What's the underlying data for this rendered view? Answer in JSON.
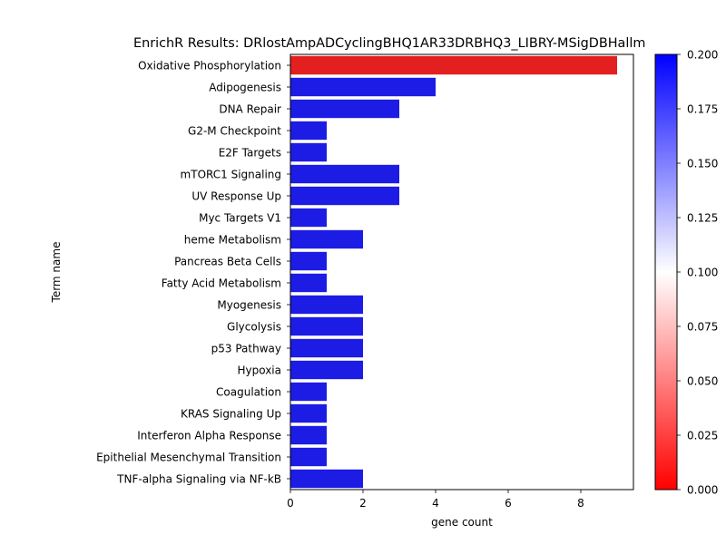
{
  "chart_data": {
    "type": "bar",
    "orientation": "horizontal",
    "title": "EnrichR Results: DRlostAmpADCyclingBHQ1AR33DRBHQ3_LIBRY-MSigDBHallm",
    "xlabel": "gene count",
    "ylabel": "Term name",
    "xlim": [
      0,
      9.45
    ],
    "xticks": [
      0,
      2,
      4,
      6,
      8
    ],
    "grid": false,
    "categories": [
      "Oxidative Phosphorylation",
      "Adipogenesis",
      "DNA Repair",
      "G2-M Checkpoint",
      "E2F Targets",
      "mTORC1 Signaling",
      "UV Response Up",
      "Myc Targets V1",
      "heme Metabolism",
      "Pancreas Beta Cells",
      "Fatty Acid Metabolism",
      "Myogenesis",
      "Glycolysis",
      "p53 Pathway",
      "Hypoxia",
      "Coagulation",
      "KRAS Signaling Up",
      "Interferon Alpha Response",
      "Epithelial Mesenchymal Transition",
      "TNF-alpha Signaling via NF-kB"
    ],
    "values": [
      9,
      4,
      3,
      1,
      1,
      3,
      3,
      1,
      2,
      1,
      1,
      2,
      2,
      2,
      2,
      1,
      1,
      1,
      1,
      2
    ],
    "bar_colors": [
      "#e41f1f",
      "#1c1ce4",
      "#1c1ce4",
      "#1c1ce4",
      "#1c1ce4",
      "#1c1ce4",
      "#1c1ce4",
      "#1c1ce4",
      "#1c1ce4",
      "#1c1ce4",
      "#1c1ce4",
      "#1c1ce4",
      "#1c1ce4",
      "#1c1ce4",
      "#1c1ce4",
      "#1c1ce4",
      "#1c1ce4",
      "#1c1ce4",
      "#1c1ce4",
      "#1c1ce4"
    ],
    "colorbar": {
      "range": [
        0.0,
        0.2
      ],
      "ticks": [
        "0.000",
        "0.025",
        "0.050",
        "0.075",
        "0.100",
        "0.125",
        "0.150",
        "0.175",
        "0.200"
      ],
      "colors": [
        "#ff0000",
        "#ffffff",
        "#0000ff"
      ]
    }
  }
}
